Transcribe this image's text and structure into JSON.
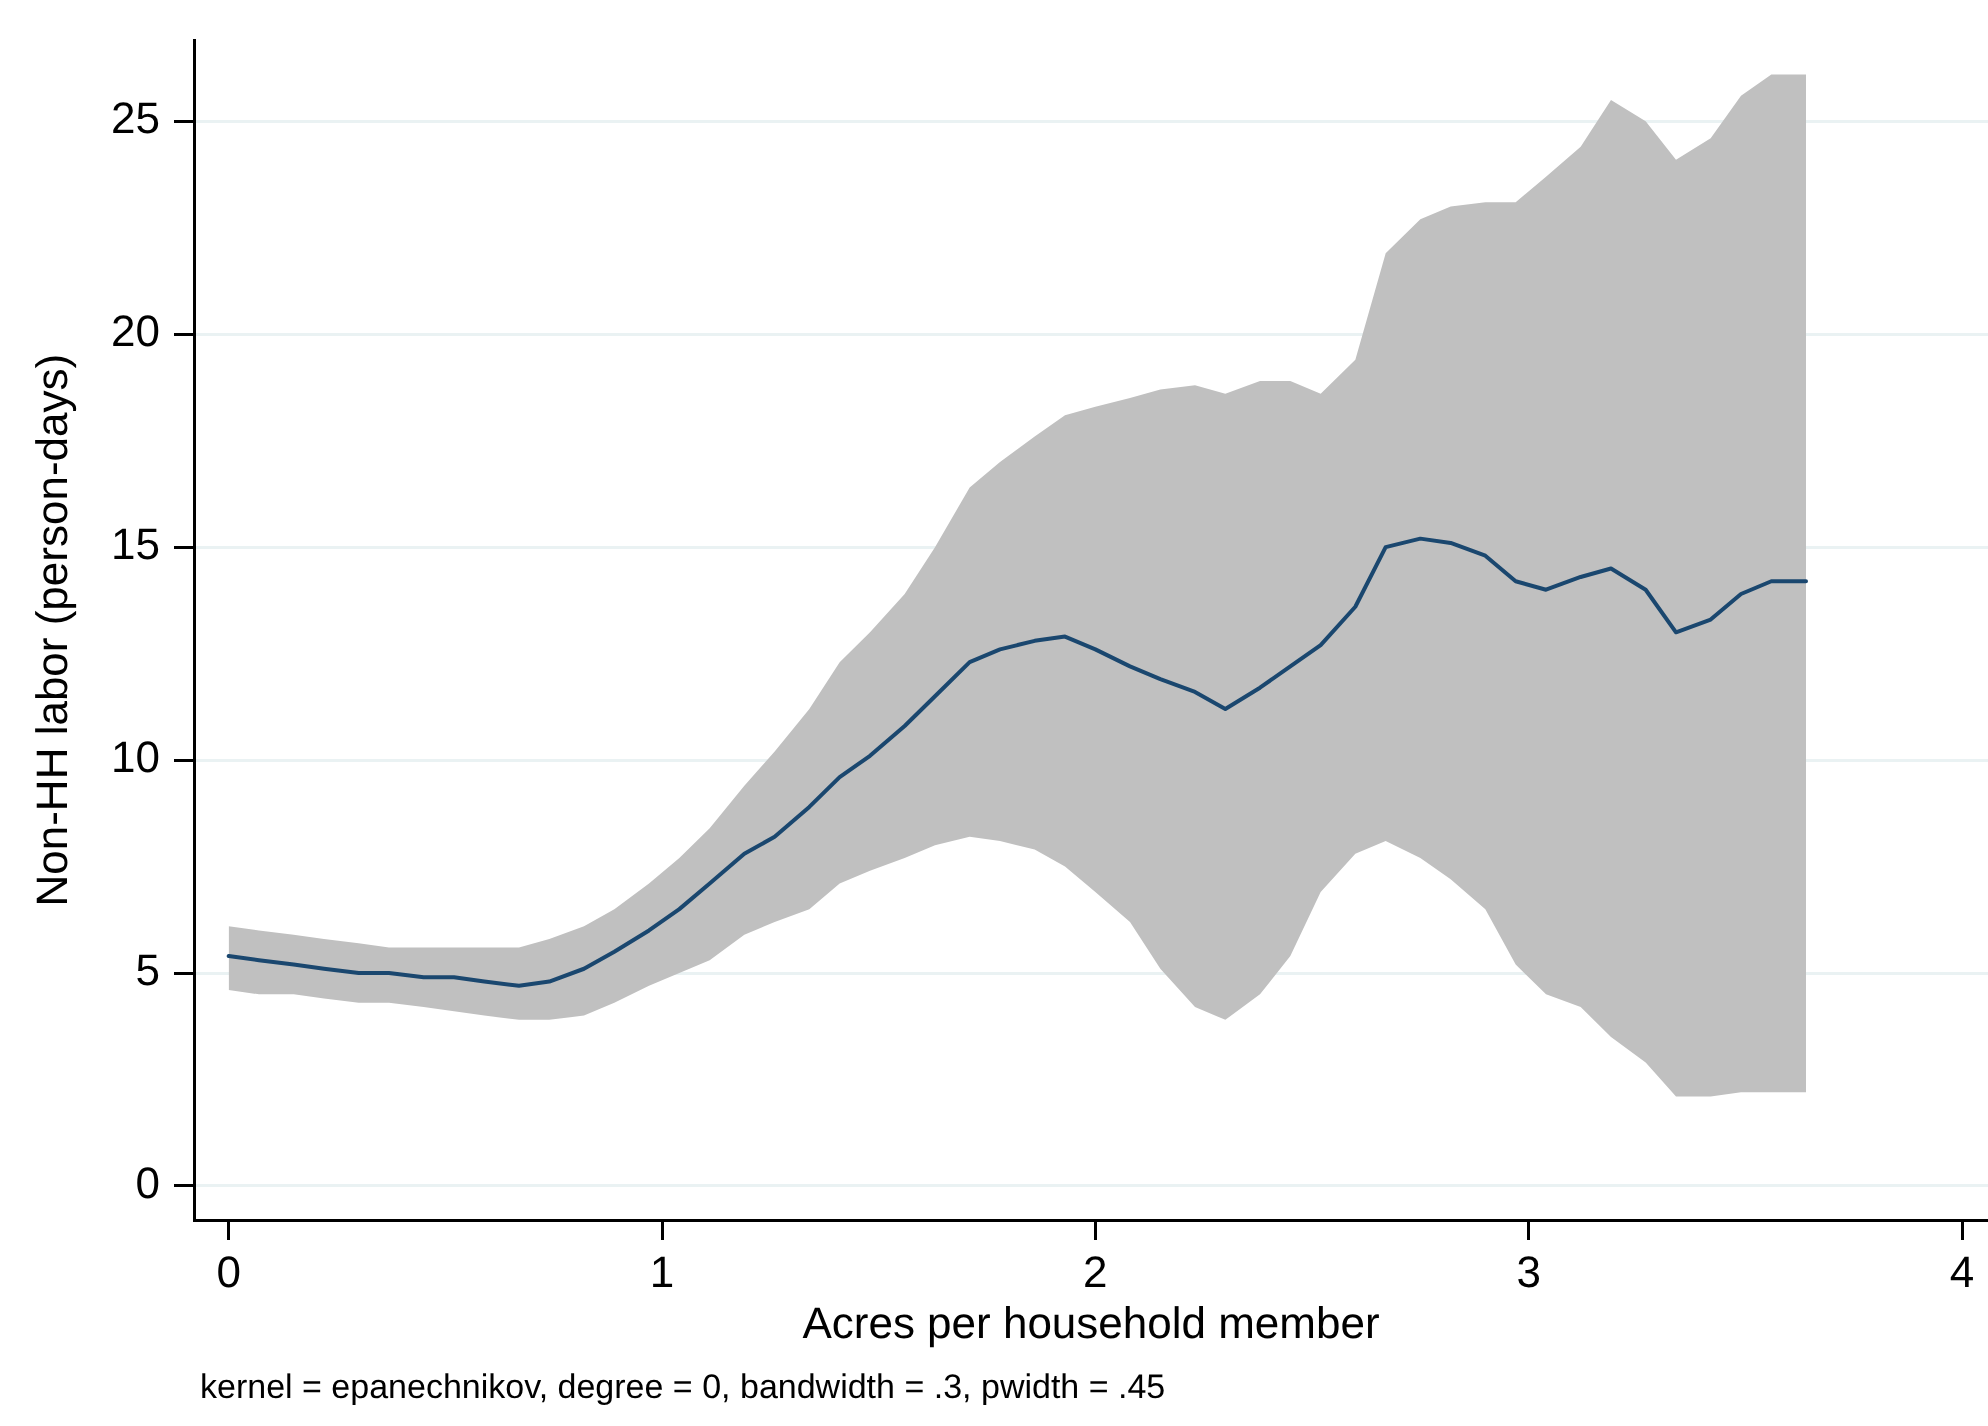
{
  "chart_data": {
    "type": "line",
    "xlabel": "Acres per household member",
    "ylabel": "Non-HH labor (person-days)",
    "annotations": [
      "kernel = epanechnikov, degree = 0, bandwidth = .3, pwidth = .45"
    ],
    "x": [
      0.0,
      0.07,
      0.15,
      0.22,
      0.3,
      0.37,
      0.45,
      0.52,
      0.59,
      0.67,
      0.74,
      0.82,
      0.89,
      0.97,
      1.04,
      1.11,
      1.19,
      1.26,
      1.34,
      1.41,
      1.48,
      1.56,
      1.63,
      1.71,
      1.78,
      1.86,
      1.93,
      2.0,
      2.08,
      2.15,
      2.23,
      2.3,
      2.38,
      2.45,
      2.52,
      2.6,
      2.67,
      2.75,
      2.82,
      2.9,
      2.97,
      3.04,
      3.12,
      3.19,
      3.27,
      3.34,
      3.42,
      3.49,
      3.56,
      3.64
    ],
    "series": [
      {
        "color": "#1a476f",
        "values": [
          5.4,
          5.3,
          5.2,
          5.1,
          5.0,
          5.0,
          4.9,
          4.9,
          4.8,
          4.7,
          4.8,
          5.1,
          5.5,
          6.0,
          6.5,
          7.1,
          7.8,
          8.2,
          8.9,
          9.6,
          10.1,
          10.8,
          11.5,
          12.3,
          12.6,
          12.8,
          12.9,
          12.6,
          12.2,
          11.9,
          11.6,
          11.2,
          11.7,
          12.2,
          12.7,
          13.6,
          15.0,
          15.2,
          15.1,
          14.8,
          14.2,
          14.0,
          14.3,
          14.5,
          14.0,
          13.0,
          13.3,
          13.9,
          14.2,
          14.2
        ],
        "lower": [
          4.6,
          4.5,
          4.5,
          4.4,
          4.3,
          4.3,
          4.2,
          4.1,
          4.0,
          3.9,
          3.9,
          4.0,
          4.3,
          4.7,
          5.0,
          5.3,
          5.9,
          6.2,
          6.5,
          7.1,
          7.4,
          7.7,
          8.0,
          8.2,
          8.1,
          7.9,
          7.5,
          6.9,
          6.2,
          5.1,
          4.2,
          3.9,
          4.5,
          5.4,
          6.9,
          7.8,
          8.1,
          7.7,
          7.2,
          6.5,
          5.2,
          4.5,
          4.2,
          3.5,
          2.9,
          2.1,
          2.1,
          2.2,
          2.2,
          2.2
        ],
        "upper": [
          6.1,
          6.0,
          5.9,
          5.8,
          5.7,
          5.6,
          5.6,
          5.6,
          5.6,
          5.6,
          5.8,
          6.1,
          6.5,
          7.1,
          7.7,
          8.4,
          9.4,
          10.2,
          11.2,
          12.3,
          13.0,
          13.9,
          15.0,
          16.4,
          17.0,
          17.6,
          18.1,
          18.3,
          18.5,
          18.7,
          18.8,
          18.6,
          18.9,
          18.9,
          18.6,
          19.4,
          21.9,
          22.7,
          23.0,
          23.1,
          23.1,
          23.7,
          24.4,
          25.5,
          25.0,
          24.1,
          24.6,
          25.6,
          26.1,
          26.1
        ]
      }
    ],
    "xlim": [
      -0.08,
      4.06
    ],
    "ylim": [
      -0.8,
      26.9
    ],
    "xticks": [
      0,
      1,
      2,
      3,
      4
    ],
    "yticks": [
      0,
      5,
      10,
      15,
      20,
      25
    ],
    "grid": "y"
  }
}
